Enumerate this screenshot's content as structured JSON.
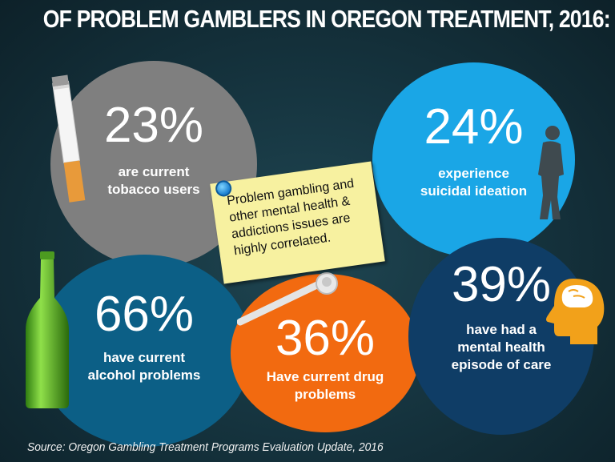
{
  "title": "OF PROBLEM GAMBLERS IN OREGON TREATMENT, 2016:",
  "stats": {
    "tobacco": {
      "value": "23%",
      "label": "are current\ntobacco users",
      "color": "#7f7f7f",
      "icon": "cigarette-icon"
    },
    "suicide": {
      "value": "24%",
      "label": "experience\nsuicidal ideation",
      "color": "#1aa6e6",
      "icon": "person-silhouette-icon"
    },
    "alcohol": {
      "value": "66%",
      "label": "have current\nalcohol problems",
      "color": "#0c5f86",
      "icon": "beer-bottle-icon"
    },
    "drug": {
      "value": "36%",
      "label": "Have current drug\nproblems",
      "color": "#f26a10",
      "icon": "pipe-icon"
    },
    "mental": {
      "value": "39%",
      "label": "have had a\nmental health\nepisode of care",
      "color": "#0f3d66",
      "icon": "head-brain-icon"
    }
  },
  "note": {
    "text": "Problem gambling and\nother mental health &\naddictions issues are\nhighly correlated.",
    "color": "#f7f1a0"
  },
  "source": "Source: Oregon Gambling Treatment Programs Evaluation Update, 2016"
}
